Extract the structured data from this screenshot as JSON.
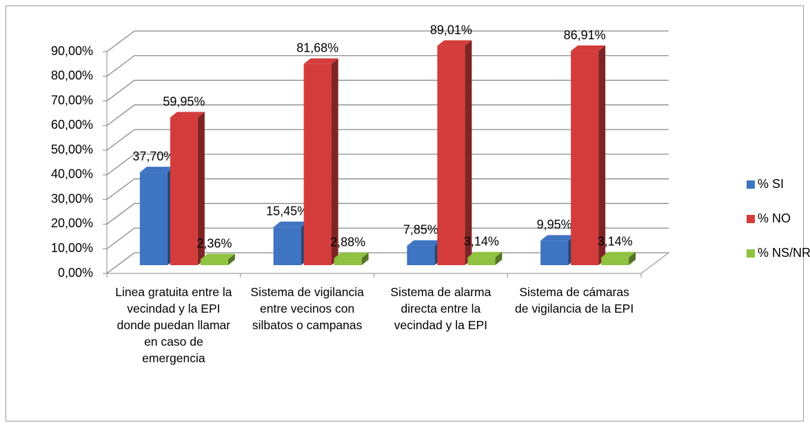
{
  "chart_data": {
    "type": "bar3d",
    "categories": [
      "Linea gratuita entre la vecindad y la EPI donde puedan llamar en caso de emergencia",
      "Sistema de vigilancia entre vecinos con silbatos o campanas",
      "Sistema de alarma directa entre la vecindad y la EPI",
      "Sistema de cámaras de vigilancia de la EPI"
    ],
    "series": [
      {
        "name": "% SI",
        "color": "#3f74c2",
        "values": [
          37.7,
          15.45,
          7.85,
          9.95
        ],
        "value_labels": [
          "37,70%",
          "15,45%",
          "7,85%",
          "9,95%"
        ]
      },
      {
        "name": "% NO",
        "color": "#d43c3c",
        "values": [
          59.95,
          81.68,
          89.01,
          86.91
        ],
        "value_labels": [
          "59,95%",
          "81,68%",
          "89,01%",
          "86,91%"
        ]
      },
      {
        "name": "% NS/NR",
        "color": "#8fc23f",
        "values": [
          2.36,
          2.88,
          3.14,
          3.14
        ],
        "value_labels": [
          "2,36%",
          "2,88%",
          "3,14%",
          "3,14%"
        ]
      }
    ],
    "ylim": [
      0,
      90
    ],
    "yticks": [
      {
        "value": 0,
        "label": "0,00%"
      },
      {
        "value": 10,
        "label": "10,00%"
      },
      {
        "value": 20,
        "label": "20,00%"
      },
      {
        "value": 30,
        "label": "30,00%"
      },
      {
        "value": 40,
        "label": "40,00%"
      },
      {
        "value": 50,
        "label": "50,00%"
      },
      {
        "value": 60,
        "label": "60,00%"
      },
      {
        "value": 70,
        "label": "70,00%"
      },
      {
        "value": 80,
        "label": "80,00%"
      },
      {
        "value": 90,
        "label": "90,00%"
      }
    ],
    "grid": true,
    "legend": "right"
  }
}
